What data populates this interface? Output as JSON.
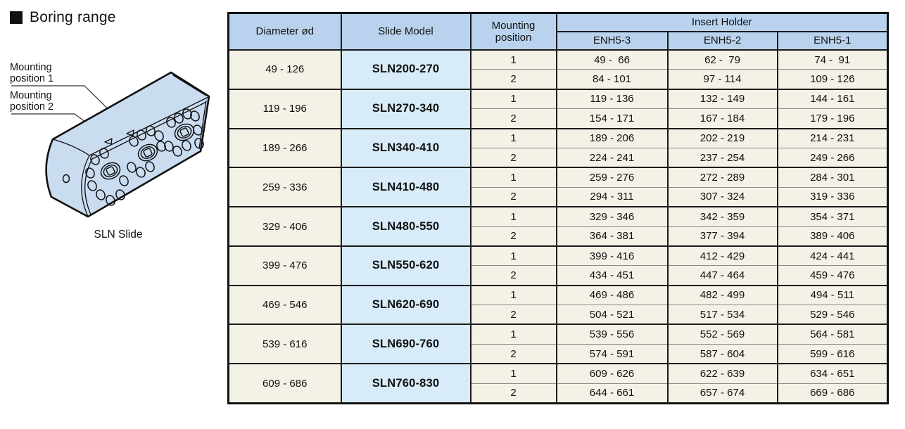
{
  "section": {
    "title": "Boring range"
  },
  "illustration": {
    "label1_line1": "Mounting",
    "label1_line2": "position 1",
    "label2_line1": "Mounting",
    "label2_line2": "position 2",
    "caption": "SLN Slide"
  },
  "table": {
    "headers": {
      "diameter": "Diameter ød",
      "slide_model": "Slide Model",
      "mounting_position": "Mounting position",
      "insert_holder": "Insert Holder",
      "enh_columns": [
        "ENH5-3",
        "ENH5-2",
        "ENH5-1"
      ]
    },
    "groups": [
      {
        "diameter": "49 - 126",
        "model": "SLN200-270",
        "rows": [
          [
            "1",
            "49 -  66",
            "62 -  79",
            "74 -  91"
          ],
          [
            "2",
            "84 - 101",
            "97 - 114",
            "109 - 126"
          ]
        ]
      },
      {
        "diameter": "119 - 196",
        "model": "SLN270-340",
        "rows": [
          [
            "1",
            "119 - 136",
            "132 - 149",
            "144 - 161"
          ],
          [
            "2",
            "154 - 171",
            "167 - 184",
            "179 - 196"
          ]
        ]
      },
      {
        "diameter": "189 - 266",
        "model": "SLN340-410",
        "rows": [
          [
            "1",
            "189 - 206",
            "202 - 219",
            "214 - 231"
          ],
          [
            "2",
            "224 - 241",
            "237 - 254",
            "249 - 266"
          ]
        ]
      },
      {
        "diameter": "259 - 336",
        "model": "SLN410-480",
        "rows": [
          [
            "1",
            "259 - 276",
            "272 - 289",
            "284 - 301"
          ],
          [
            "2",
            "294 - 311",
            "307 - 324",
            "319 - 336"
          ]
        ]
      },
      {
        "diameter": "329 - 406",
        "model": "SLN480-550",
        "rows": [
          [
            "1",
            "329 - 346",
            "342 - 359",
            "354 - 371"
          ],
          [
            "2",
            "364 - 381",
            "377 - 394",
            "389 - 406"
          ]
        ]
      },
      {
        "diameter": "399 - 476",
        "model": "SLN550-620",
        "rows": [
          [
            "1",
            "399 - 416",
            "412 - 429",
            "424 - 441"
          ],
          [
            "2",
            "434 - 451",
            "447 - 464",
            "459 - 476"
          ]
        ]
      },
      {
        "diameter": "469 - 546",
        "model": "SLN620-690",
        "rows": [
          [
            "1",
            "469 - 486",
            "482 - 499",
            "494 - 511"
          ],
          [
            "2",
            "504 - 521",
            "517 - 534",
            "529 - 546"
          ]
        ]
      },
      {
        "diameter": "539 - 616",
        "model": "SLN690-760",
        "rows": [
          [
            "1",
            "539 - 556",
            "552 - 569",
            "564 - 581"
          ],
          [
            "2",
            "574 - 591",
            "587 - 604",
            "599 - 616"
          ]
        ]
      },
      {
        "diameter": "609 - 686",
        "model": "SLN760-830",
        "rows": [
          [
            "1",
            "609 - 626",
            "622 - 639",
            "634 - 651"
          ],
          [
            "2",
            "644 - 661",
            "657 - 674",
            "669 - 686"
          ]
        ]
      }
    ]
  },
  "colors": {
    "header_blue": "#b9d3ee",
    "model_blue": "#d7ebf8",
    "cell_cream": "#f4f1e6",
    "block_blue": "#cadcf0",
    "border_dark": "#1a1a1a",
    "border_gray": "#8a8a8a"
  }
}
